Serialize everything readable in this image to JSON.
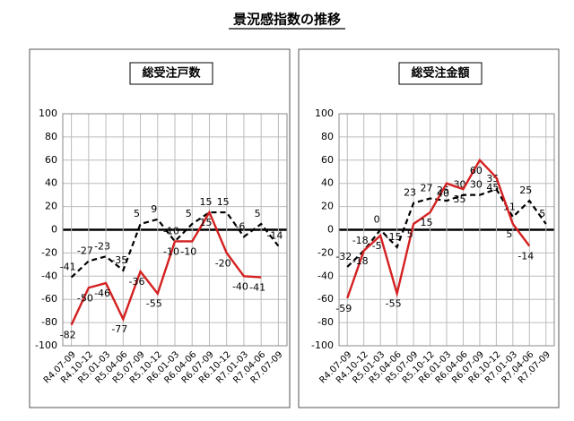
{
  "title": "景況感指数の推移",
  "chart_data": [
    {
      "type": "line",
      "title": "総受注戸数",
      "categories": [
        "R4.07-09",
        "R4.10-12",
        "R5.01-03",
        "R5.04-06",
        "R5.07-09",
        "R5.10-12",
        "R6.01-03",
        "R6.04-06",
        "R6.07-09",
        "R6.10-12",
        "R7.01-03",
        "R7.04-06",
        "R7.07-09"
      ],
      "series": [
        {
          "color": "#000000",
          "dashed": true,
          "values": [
            -41,
            -27,
            -23,
            -35,
            5,
            9,
            -10,
            5,
            15,
            15,
            -6,
            5,
            -14
          ]
        },
        {
          "color": "#d42020",
          "dashed": false,
          "values": [
            -82,
            -50,
            -46,
            -77,
            -36,
            -55,
            -10,
            -10,
            15,
            -20,
            -40,
            -41,
            null
          ]
        }
      ],
      "ylim": [
        -100,
        100
      ],
      "yticks": [
        -100,
        -80,
        -60,
        -40,
        -20,
        0,
        20,
        40,
        60,
        80,
        100
      ],
      "grid": true
    },
    {
      "type": "line",
      "title": "総受注金額",
      "categories": [
        "R4.07-09",
        "R4.10-12",
        "R5.01-03",
        "R5.04-06",
        "R5.07-09",
        "R5.10-12",
        "R6.01-03",
        "R6.04-06",
        "R6.07-09",
        "R6.10-12",
        "R7.01-03",
        "R7.04-06",
        "R7.07-09"
      ],
      "series": [
        {
          "color": "#000000",
          "dashed": true,
          "values": [
            -32,
            -18,
            0,
            -15,
            23,
            27,
            25,
            30,
            30,
            35,
            11,
            25,
            5
          ]
        },
        {
          "color": "#d42020",
          "dashed": false,
          "values": [
            -59,
            -18,
            -5,
            -55,
            5,
            15,
            40,
            35,
            60,
            45,
            5,
            -14,
            null
          ]
        }
      ],
      "ylim": [
        -100,
        100
      ],
      "yticks": [
        -100,
        -80,
        -60,
        -40,
        -20,
        0,
        20,
        40,
        60,
        80,
        100
      ],
      "grid": true
    }
  ]
}
